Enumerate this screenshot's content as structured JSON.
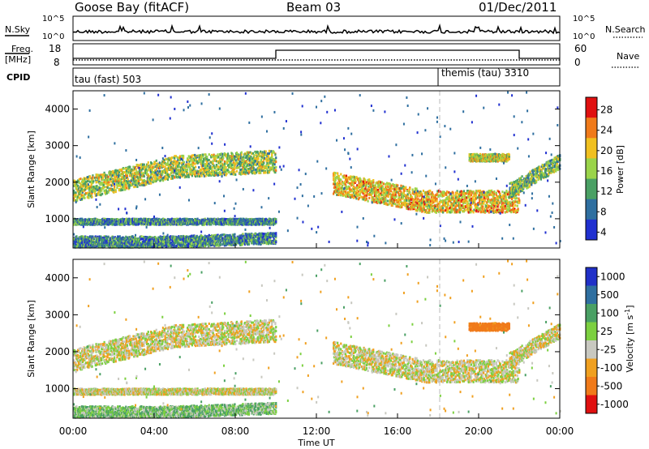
{
  "header": {
    "station": "Goose Bay (fitACF)",
    "beam": "Beam 03",
    "date": "01/Dec/2011"
  },
  "noise_panel": {
    "left_label": "N.Sky",
    "right_label": "N.Search",
    "left_ticks": [
      "10^5",
      "10^0"
    ],
    "right_ticks": [
      "10^5",
      "10^0"
    ]
  },
  "freq_panel": {
    "left_label_1": "Freq.",
    "left_label_2": "[MHz]",
    "right_label": "Nave",
    "left_ticks": [
      "18",
      "8"
    ],
    "right_ticks": [
      "60",
      "0"
    ],
    "nave_step": {
      "x_start_hours": 10.0,
      "x_end_hours": 22.0,
      "level_low": 0,
      "level_high": 50
    }
  },
  "cpid_panel": {
    "label": "CPID",
    "mode1": "tau (fast) 503",
    "mode2": "themis (tau) 3310",
    "mode_switch_hours": 18.0
  },
  "x_axis": {
    "label": "Time UT",
    "ticks": [
      "00:00",
      "04:00",
      "08:00",
      "12:00",
      "16:00",
      "20:00",
      "00:00"
    ],
    "range_hours": [
      0,
      24
    ]
  },
  "power_panel": {
    "ylabel": "Slant Range [km]",
    "yticks": [
      "1000",
      "2000",
      "3000",
      "4000"
    ],
    "colorbar_label": "Power [dB]",
    "colorbar_ticks": [
      "28",
      "24",
      "20",
      "16",
      "12",
      "8",
      "4"
    ],
    "colorbar_colors": [
      "#e01010",
      "#f07a1a",
      "#f0c020",
      "#9ad44a",
      "#4aa064",
      "#2f6fa0",
      "#2030d0"
    ]
  },
  "velocity_panel": {
    "ylabel": "Slant Range [km]",
    "yticks": [
      "1000",
      "2000",
      "3000",
      "4000"
    ],
    "colorbar_label": "Velocity [m s^-1]",
    "colorbar_ticks": [
      "1000",
      "500",
      "100",
      "25",
      "-25",
      "-100",
      "-500",
      "-1000"
    ],
    "colorbar_colors": [
      "#2030c8",
      "#2f6fa0",
      "#4aa064",
      "#7cd040",
      "#c8c8c0",
      "#f0a020",
      "#f07a1a",
      "#e01010"
    ]
  },
  "chart_data": {
    "type": "heatmap",
    "title": "Goose Bay (fitACF)",
    "xlabel": "Time UT",
    "ylabel": "Slant Range [km]",
    "xlim": [
      0,
      24
    ],
    "ylim": [
      200,
      4500
    ],
    "description_note": "",
    "echo_regions": [
      {
        "t0": 0.0,
        "t1": 10.0,
        "r_center_start": 1800,
        "r_center_mid": 2450,
        "r_center_end": 2600,
        "halfwidth": 300,
        "power_dB": 16,
        "velocity": 0
      },
      {
        "t0": 0.0,
        "t1": 10.0,
        "r_center_start": 950,
        "r_center_mid": 950,
        "r_center_end": 950,
        "halfwidth": 80,
        "power_dB": 10,
        "velocity": 0
      },
      {
        "t0": 0.0,
        "t1": 10.0,
        "r_center_start": 400,
        "r_center_mid": 400,
        "r_center_end": 500,
        "halfwidth": 150,
        "power_dB": 10,
        "velocity": 50
      },
      {
        "t0": 12.8,
        "t1": 22.0,
        "r_center_start": 2000,
        "r_center_mid": 1500,
        "r_center_end": 1500,
        "halfwidth": 300,
        "power_dB": 20,
        "velocity": 0
      },
      {
        "t0": 21.5,
        "t1": 24.0,
        "r_center_start": 1800,
        "r_center_mid": 2200,
        "r_center_end": 2600,
        "halfwidth": 200,
        "power_dB": 14,
        "velocity": 0
      },
      {
        "t0": 19.5,
        "t1": 21.5,
        "r_center_start": 2700,
        "r_center_mid": 2700,
        "r_center_end": 2700,
        "halfwidth": 100,
        "power_dB": 18,
        "velocity": -150
      }
    ]
  }
}
